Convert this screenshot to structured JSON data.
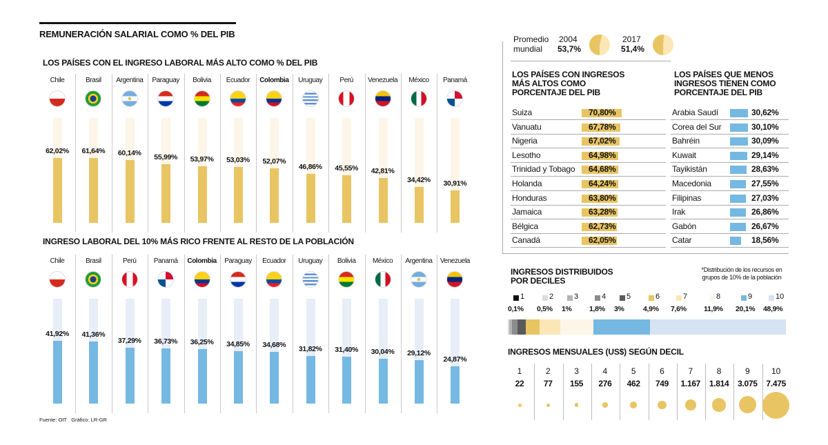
{
  "title": "REMUNERACIÓN SALARIAL COMO % DEL PIB",
  "source": "Fuente: OIT",
  "credit": "Gráfico: LR-GR",
  "colors": {
    "gold": "#e8c463",
    "gold_track": "#fdf5e8",
    "blue": "#75b8e2",
    "blue_track": "#e7eef8"
  },
  "chart_data": [
    {
      "type": "bar",
      "title": "LOS PAÍSES CON EL INGRESO LABORAL MÁS ALTO COMO % DEL PIB",
      "highlight": "Colombia",
      "categories": [
        "Chile",
        "Brasil",
        "Argentina",
        "Paraguay",
        "Bolivia",
        "Ecuador",
        "Colombia",
        "Uruguay",
        "Perú",
        "Venezuela",
        "México",
        "Panamá"
      ],
      "values": [
        62.02,
        61.64,
        60.14,
        55.99,
        53.97,
        53.03,
        52.07,
        46.86,
        45.55,
        42.81,
        34.42,
        30.91
      ],
      "labels": [
        "62,02%",
        "61,64%",
        "60,14%",
        "55,99%",
        "53,97%",
        "53,03%",
        "52,07%",
        "46,86%",
        "45,55%",
        "42,81%",
        "34,42%",
        "30,91%"
      ],
      "ylim": [
        0,
        100
      ]
    },
    {
      "type": "bar",
      "title": "INGRESO LABORAL DEL 10% MÁS RICO FRENTE AL RESTO DE LA POBLACIÓN",
      "highlight": "Colombia",
      "categories": [
        "Chile",
        "Brasil",
        "Perú",
        "Panamá",
        "Colombia",
        "Paraguay",
        "Ecuador",
        "Uruguay",
        "Bolivia",
        "México",
        "Argentina",
        "Venezuela"
      ],
      "values": [
        41.92,
        41.36,
        37.29,
        36.73,
        36.25,
        34.85,
        34.68,
        31.82,
        31.4,
        30.04,
        29.12,
        24.87
      ],
      "labels": [
        "41,92%",
        "41,36%",
        "37,29%",
        "36,73%",
        "36,25%",
        "34,85%",
        "34,68%",
        "31,82%",
        "31,40%",
        "30,04%",
        "29,12%",
        "24,87%"
      ],
      "ylim": [
        0,
        70
      ]
    },
    {
      "type": "pie",
      "label": "Promedio mundial",
      "items": [
        {
          "year": "2004",
          "value": 53.7,
          "label": "53,7%"
        },
        {
          "year": "2017",
          "value": 51.4,
          "label": "51,4%"
        }
      ]
    },
    {
      "type": "bar",
      "orientation": "horizontal",
      "title": "LOS PAÍSES CON INGRESOS MÁS ALTOS COMO PORCENTAJE DEL PIB",
      "categories": [
        "Suiza",
        "Vanuatu",
        "Nigeria",
        "Lesotho",
        "Trinidad y Tobago",
        "Holanda",
        "Honduras",
        "Jamaica",
        "Bélgica",
        "Canadá"
      ],
      "values": [
        70.8,
        67.78,
        67.02,
        64.98,
        64.68,
        64.24,
        63.8,
        63.28,
        62.73,
        62.05
      ],
      "labels": [
        "70,80%",
        "67,78%",
        "67,02%",
        "64,98%",
        "64,68%",
        "64,24%",
        "63,80%",
        "63,28%",
        "62,73%",
        "62,05%"
      ]
    },
    {
      "type": "bar",
      "orientation": "horizontal",
      "title": "LOS PAÍSES QUE MENOS INGRESOS TIENEN COMO PORCENTAJE DEL PIB",
      "categories": [
        "Arabia Saudí",
        "Corea del Sur",
        "Bahréin",
        "Kuwait",
        "Tayikistán",
        "Macedonia",
        "Filipinas",
        "Irak",
        "Gabón",
        "Catar"
      ],
      "values": [
        30.62,
        30.1,
        30.09,
        29.14,
        28.63,
        27.55,
        27.03,
        26.86,
        26.67,
        18.56
      ],
      "labels": [
        "30,62%",
        "30,10%",
        "30,09%",
        "29,14%",
        "28,63%",
        "27,55%",
        "27,03%",
        "26,86%",
        "26,67%",
        "18,56%"
      ]
    },
    {
      "type": "bar",
      "orientation": "stacked-horizontal",
      "title": "INGRESOS DISTRIBUIDOS POR DECILES",
      "note": "*Distribución de los recursos en grupos de 10% de la población",
      "categories": [
        "1",
        "2",
        "3",
        "4",
        "5",
        "6",
        "7",
        "8",
        "9",
        "10"
      ],
      "values": [
        0.1,
        0.5,
        1,
        1.8,
        3,
        4.9,
        7.6,
        11.9,
        20.1,
        48.9
      ],
      "labels": [
        "0,1%",
        "0,5%",
        "1%",
        "1,8%",
        "3%",
        "4,9%",
        "7,6%",
        "11,9%",
        "20,1%",
        "48,9%"
      ],
      "colors": [
        "#111111",
        "#dcdcdc",
        "#b4b4b4",
        "#8c8c8c",
        "#5a5a5a",
        "#e8c463",
        "#fbe7b5",
        "#fdf5e8",
        "#75b8e2",
        "#d5e3f2"
      ]
    },
    {
      "type": "scatter",
      "subtype": "bubble",
      "title": "INGRESOS MENSUALES (US$) SEGÚN DECIL",
      "categories": [
        "1",
        "2",
        "3",
        "4",
        "5",
        "6",
        "7",
        "8",
        "9",
        "10"
      ],
      "values": [
        22,
        77,
        155,
        276,
        462,
        749,
        1167,
        1814,
        3075,
        7475
      ],
      "labels": [
        "22",
        "77",
        "155",
        "276",
        "462",
        "749",
        "1.167",
        "1.814",
        "3.075",
        "7.475"
      ]
    }
  ]
}
